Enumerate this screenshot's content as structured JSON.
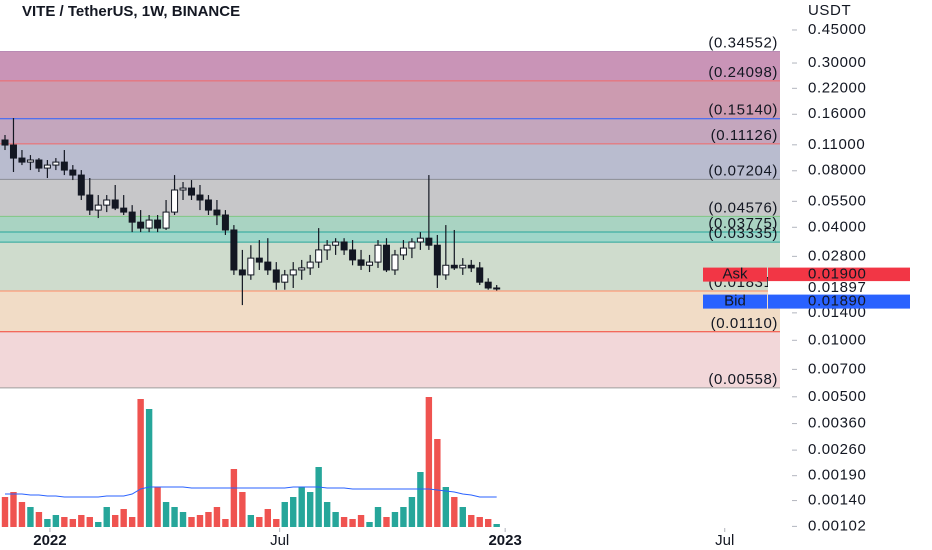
{
  "chart_data": {
    "type": "candlestick",
    "title": "VITE / TetherUS, 1W, BINANCE",
    "y_unit": "USDT",
    "log_scale": true,
    "ylim": [
      0.001,
      0.65
    ],
    "yticks": [
      {
        "value": 0.45,
        "label": "0.45000"
      },
      {
        "value": 0.3,
        "label": "0.30000"
      },
      {
        "value": 0.22,
        "label": "0.22000"
      },
      {
        "value": 0.16,
        "label": "0.16000"
      },
      {
        "value": 0.11,
        "label": "0.11000"
      },
      {
        "value": 0.08,
        "label": "0.08000"
      },
      {
        "value": 0.055,
        "label": "0.05500"
      },
      {
        "value": 0.04,
        "label": "0.04000"
      },
      {
        "value": 0.028,
        "label": "0.02800"
      },
      {
        "value": 0.014,
        "label": "0.01400"
      },
      {
        "value": 0.01,
        "label": "0.01000"
      },
      {
        "value": 0.007,
        "label": "0.00700"
      },
      {
        "value": 0.005,
        "label": "0.00500"
      },
      {
        "value": 0.0036,
        "label": "0.00360"
      },
      {
        "value": 0.0026,
        "label": "0.00260"
      },
      {
        "value": 0.0019,
        "label": "0.00190"
      },
      {
        "value": 0.0014,
        "label": "0.00140"
      },
      {
        "value": 0.00102,
        "label": "0.00102"
      }
    ],
    "xlim": [
      -0.59,
      92.6
    ],
    "xticks": [
      {
        "value": 5.3,
        "label": "2022"
      },
      {
        "value": 32.4,
        "label": "Jul"
      },
      {
        "value": 59.0,
        "label": "2023"
      },
      {
        "value": 84.9,
        "label": "Jul"
      }
    ],
    "open": [
      0.1167,
      0.1097,
      0.0935,
      0.089,
      0.0913,
      0.0827,
      0.0858,
      0.089,
      0.0807,
      0.0759,
      0.0594,
      0.0494,
      0.0525,
      0.0559,
      0.0506,
      0.0482,
      0.0426,
      0.0396,
      0.0437,
      0.0396,
      0.0482,
      0.0632,
      0.0647,
      0.0594,
      0.0559,
      0.0494,
      0.0465,
      0.0387,
      0.0237,
      0.0223,
      0.0274,
      0.0261,
      0.0237,
      0.0204,
      0.0223,
      0.0237,
      0.0243,
      0.0261,
      0.0303,
      0.0321,
      0.0334,
      0.0303,
      0.0268,
      0.0251,
      0.0261,
      0.0321,
      0.0237,
      0.0285,
      0.031,
      0.0334,
      0.035,
      0.0321,
      0.0223,
      0.0251,
      0.0243,
      0.0251,
      0.0243,
      0.0204,
      0.019
    ],
    "high": [
      0.1241,
      0.1528,
      0.1032,
      0.097,
      0.0935,
      0.0913,
      0.0935,
      0.1032,
      0.0858,
      0.0807,
      0.0732,
      0.0594,
      0.0594,
      0.0672,
      0.0594,
      0.0525,
      0.0494,
      0.0465,
      0.0465,
      0.0559,
      0.0759,
      0.0697,
      0.0714,
      0.0672,
      0.0594,
      0.0559,
      0.0494,
      0.0411,
      0.0303,
      0.0321,
      0.0342,
      0.035,
      0.0261,
      0.0237,
      0.0261,
      0.0268,
      0.0285,
      0.0396,
      0.0342,
      0.035,
      0.035,
      0.0342,
      0.0303,
      0.0285,
      0.0342,
      0.035,
      0.0303,
      0.0342,
      0.035,
      0.0377,
      0.0759,
      0.0364,
      0.0411,
      0.0387,
      0.0274,
      0.0268,
      0.0261,
      0.0214,
      0.0197
    ],
    "low": [
      0.1032,
      0.0788,
      0.0858,
      0.0807,
      0.0788,
      0.0732,
      0.0807,
      0.0759,
      0.0714,
      0.0559,
      0.0465,
      0.0448,
      0.0482,
      0.0494,
      0.0465,
      0.0377,
      0.0377,
      0.0377,
      0.0377,
      0.0387,
      0.0465,
      0.0559,
      0.0559,
      0.0494,
      0.0465,
      0.0411,
      0.0364,
      0.0223,
      0.0154,
      0.021,
      0.0237,
      0.0223,
      0.0186,
      0.0186,
      0.019,
      0.021,
      0.0223,
      0.0243,
      0.0268,
      0.0285,
      0.0285,
      0.0251,
      0.0237,
      0.0231,
      0.0243,
      0.0231,
      0.0223,
      0.0268,
      0.0274,
      0.0303,
      0.0303,
      0.019,
      0.021,
      0.0237,
      0.0223,
      0.0231,
      0.0197,
      0.0186,
      0.0184
    ],
    "close": [
      0.1097,
      0.0935,
      0.089,
      0.0913,
      0.0827,
      0.0858,
      0.089,
      0.0807,
      0.0759,
      0.0594,
      0.0494,
      0.0525,
      0.0559,
      0.0506,
      0.0482,
      0.0426,
      0.0396,
      0.0437,
      0.0396,
      0.0482,
      0.0632,
      0.0647,
      0.0594,
      0.0559,
      0.0494,
      0.0465,
      0.0387,
      0.0237,
      0.0223,
      0.0274,
      0.0261,
      0.0237,
      0.0204,
      0.0223,
      0.0237,
      0.0243,
      0.0261,
      0.0303,
      0.0321,
      0.0334,
      0.0303,
      0.0268,
      0.0251,
      0.0261,
      0.0321,
      0.0237,
      0.0285,
      0.031,
      0.0334,
      0.035,
      0.0321,
      0.0223,
      0.0251,
      0.0243,
      0.0251,
      0.0243,
      0.0204,
      0.019,
      0.019
    ],
    "up_color": "#ffffff",
    "down_color": "#131722",
    "volume": [
      30,
      35,
      25,
      20,
      15,
      8,
      12,
      10,
      8,
      12,
      10,
      5,
      20,
      12,
      18,
      10,
      128,
      118,
      40,
      25,
      20,
      15,
      10,
      12,
      15,
      20,
      8,
      58,
      35,
      12,
      10,
      18,
      8,
      25,
      30,
      40,
      35,
      60,
      25,
      15,
      10,
      8,
      12,
      5,
      20,
      10,
      15,
      20,
      30,
      55,
      130,
      88,
      40,
      30,
      20,
      12,
      10,
      8,
      3
    ],
    "volume_ma": [
      33,
      33,
      33,
      32,
      32,
      31,
      31,
      30,
      30,
      30,
      30,
      30,
      31,
      31,
      31,
      33,
      38,
      40,
      40,
      40,
      40,
      40,
      39,
      39,
      39,
      39,
      39,
      39,
      39,
      39,
      39,
      39,
      39,
      39,
      40,
      40,
      40,
      40,
      39,
      39,
      39,
      38,
      38,
      38,
      38,
      38,
      38,
      38,
      38,
      38,
      38,
      37,
      36,
      35,
      33,
      32,
      30,
      30,
      30
    ],
    "volume_up_color": "#26a69a",
    "volume_down_color": "#ef5350",
    "volume_ma_color": "#2962ff",
    "fib_levels": [
      {
        "value": 0.34552,
        "label": "(0.34552)",
        "color": "#b98ab4",
        "fill": "#c994b7"
      },
      {
        "value": 0.24098,
        "label": "(0.24098)",
        "color": "#f06a6a",
        "fill": "#cc9bb0"
      },
      {
        "value": 0.1514,
        "label": "(0.15140)",
        "color": "#2962ff",
        "fill": "#c4a6bd"
      },
      {
        "value": 0.11126,
        "label": "(0.11126)",
        "color": "#f06a6a",
        "fill": "#b9bccf"
      },
      {
        "value": 0.07204,
        "label": "(0.07204)",
        "color": "#8a8d96",
        "fill": "#c7c7c9"
      },
      {
        "value": 0.04576,
        "label": "(0.04576)",
        "color": "#81c784",
        "fill": "#a9d3c2"
      },
      {
        "value": 0.03775,
        "label": "(0.03775)",
        "color": "#26a69a",
        "fill": "#9fd6c9"
      },
      {
        "value": 0.03335,
        "label": "(0.03335)",
        "color": "#26a69a",
        "fill": "#cfdccd"
      },
      {
        "value": 0.01831,
        "label": "(0.01831)",
        "color": "#ff8a65",
        "fill": "#f1dcc6"
      },
      {
        "value": 0.0111,
        "label": "(0.01110)",
        "color": "#f44336",
        "fill": "#f2d7d9"
      },
      {
        "value": 0.00558,
        "label": "(0.00558)",
        "color": "#9e9e9e"
      }
    ],
    "ask": {
      "name": "Ask",
      "value": 0.019,
      "label": "0.01900",
      "color": "#f23645"
    },
    "last": {
      "value": 0.01897,
      "label": "0.01897"
    },
    "bid": {
      "name": "Bid",
      "value": 0.0189,
      "label": "0.01890",
      "color": "#2962ff"
    }
  }
}
